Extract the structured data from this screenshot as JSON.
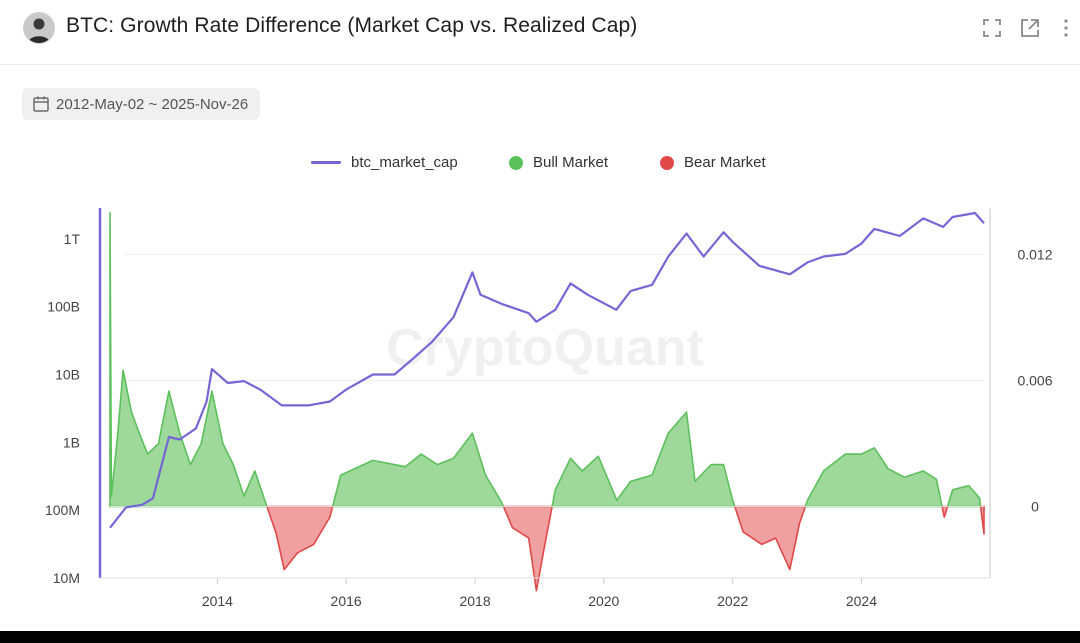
{
  "header": {
    "title": "BTC: Growth Rate Difference (Market Cap vs. Realized Cap)",
    "icons": [
      "avatar",
      "fullscreen-icon",
      "external-link-icon",
      "more-vertical-icon"
    ]
  },
  "date_range": {
    "label": "2012-May-02 ~ 2025-Nov-26",
    "icon": "calendar-icon"
  },
  "watermark": "CryptoQuant",
  "colors": {
    "market_cap_line": "#7566d6",
    "bull": "#5cc05c",
    "bull_fill": "#9ed89a",
    "bear": "#e04848",
    "bear_fill": "#f0a0a0",
    "grid": "#eeeeee"
  },
  "chart_data": {
    "type": "line",
    "legend": {
      "position": "top-center",
      "entries": [
        "btc_market_cap",
        "Bull Market",
        "Bear Market"
      ]
    },
    "x_axis": {
      "type": "date",
      "range": [
        "2012-05-02",
        "2025-11-26"
      ],
      "ticks": [
        "2014",
        "2016",
        "2018",
        "2020",
        "2022",
        "2024"
      ]
    },
    "y_left": {
      "scale": "log",
      "range": [
        10000000,
        4000000000000
      ],
      "ticks": [
        {
          "value": 1000000000000,
          "label": "1T"
        },
        {
          "value": 100000000000,
          "label": "100B"
        },
        {
          "value": 10000000000,
          "label": "10B"
        },
        {
          "value": 1000000000,
          "label": "1B"
        },
        {
          "value": 100000000,
          "label": "100M"
        },
        {
          "value": 10000000,
          "label": "10M"
        }
      ]
    },
    "y_right": {
      "scale": "linear",
      "range": [
        -0.0034,
        0.0147
      ],
      "ticks": [
        {
          "value": 0.012,
          "label": "0.012"
        },
        {
          "value": 0.006,
          "label": "0.006"
        },
        {
          "value": 0,
          "label": "0"
        }
      ]
    },
    "grid": true,
    "series": [
      {
        "name": "btc_market_cap",
        "axis": "left",
        "type": "line",
        "points": [
          [
            "2012-05-02",
            55000000
          ],
          [
            "2012-08-01",
            110000000
          ],
          [
            "2012-11-01",
            120000000
          ],
          [
            "2013-01-01",
            150000000
          ],
          [
            "2013-04-01",
            1200000000
          ],
          [
            "2013-06-01",
            1100000000
          ],
          [
            "2013-09-01",
            1600000000
          ],
          [
            "2013-11-01",
            4000000000
          ],
          [
            "2013-12-01",
            12000000000
          ],
          [
            "2014-03-01",
            7500000000
          ],
          [
            "2014-06-01",
            8000000000
          ],
          [
            "2014-09-01",
            6000000000
          ],
          [
            "2015-01-01",
            3500000000
          ],
          [
            "2015-06-01",
            3500000000
          ],
          [
            "2015-10-01",
            4000000000
          ],
          [
            "2016-01-01",
            6000000000
          ],
          [
            "2016-06-01",
            10000000000
          ],
          [
            "2016-10-01",
            10000000000
          ],
          [
            "2017-01-01",
            16000000000
          ],
          [
            "2017-05-01",
            30000000000
          ],
          [
            "2017-09-01",
            70000000000
          ],
          [
            "2017-12-17",
            320000000000
          ],
          [
            "2018-02-01",
            150000000000
          ],
          [
            "2018-06-01",
            110000000000
          ],
          [
            "2018-11-01",
            80000000000
          ],
          [
            "2018-12-15",
            60000000000
          ],
          [
            "2019-04-01",
            90000000000
          ],
          [
            "2019-06-26",
            220000000000
          ],
          [
            "2019-10-01",
            150000000000
          ],
          [
            "2020-03-12",
            90000000000
          ],
          [
            "2020-06-01",
            170000000000
          ],
          [
            "2020-10-01",
            210000000000
          ],
          [
            "2021-01-01",
            550000000000
          ],
          [
            "2021-04-14",
            1200000000000
          ],
          [
            "2021-07-20",
            550000000000
          ],
          [
            "2021-11-10",
            1250000000000
          ],
          [
            "2022-01-01",
            900000000000
          ],
          [
            "2022-06-01",
            400000000000
          ],
          [
            "2022-11-21",
            300000000000
          ],
          [
            "2023-03-01",
            450000000000
          ],
          [
            "2023-06-01",
            550000000000
          ],
          [
            "2023-10-01",
            600000000000
          ],
          [
            "2024-01-01",
            850000000000
          ],
          [
            "2024-03-14",
            1400000000000
          ],
          [
            "2024-08-05",
            1100000000000
          ],
          [
            "2024-12-17",
            2000000000000
          ],
          [
            "2025-04-08",
            1500000000000
          ],
          [
            "2025-06-01",
            2100000000000
          ],
          [
            "2025-10-06",
            2400000000000
          ],
          [
            "2025-11-26",
            1700000000000
          ]
        ]
      },
      {
        "name": "Growth Rate Difference",
        "axis": "right",
        "type": "area",
        "positive_label": "Bull Market",
        "negative_label": "Bear Market",
        "points": [
          [
            "2012-05-02",
            0.014
          ],
          [
            "2012-05-10",
            0.0005
          ],
          [
            "2012-06-15",
            0.0035
          ],
          [
            "2012-07-15",
            0.0065
          ],
          [
            "2012-09-01",
            0.0045
          ],
          [
            "2012-10-15",
            0.0035
          ],
          [
            "2012-12-01",
            0.0025
          ],
          [
            "2013-02-01",
            0.003
          ],
          [
            "2013-04-01",
            0.0055
          ],
          [
            "2013-06-01",
            0.0035
          ],
          [
            "2013-08-01",
            0.002
          ],
          [
            "2013-10-01",
            0.003
          ],
          [
            "2013-12-01",
            0.0055
          ],
          [
            "2014-02-01",
            0.003
          ],
          [
            "2014-04-01",
            0.002
          ],
          [
            "2014-06-01",
            0.0005
          ],
          [
            "2014-08-01",
            0.0017
          ],
          [
            "2014-10-01",
            0.0002
          ],
          [
            "2014-12-01",
            -0.0013
          ],
          [
            "2015-01-15",
            -0.003
          ],
          [
            "2015-04-01",
            -0.0022
          ],
          [
            "2015-07-01",
            -0.0018
          ],
          [
            "2015-10-01",
            -0.0005
          ],
          [
            "2015-12-01",
            0.0015
          ],
          [
            "2016-06-01",
            0.0022
          ],
          [
            "2016-12-01",
            0.0019
          ],
          [
            "2017-03-01",
            0.0025
          ],
          [
            "2017-06-01",
            0.002
          ],
          [
            "2017-09-01",
            0.0023
          ],
          [
            "2017-12-17",
            0.0035
          ],
          [
            "2018-03-01",
            0.0015
          ],
          [
            "2018-06-01",
            0.0002
          ],
          [
            "2018-08-01",
            -0.001
          ],
          [
            "2018-11-01",
            -0.0015
          ],
          [
            "2018-12-15",
            -0.004
          ],
          [
            "2019-02-01",
            -0.0018
          ],
          [
            "2019-04-01",
            0.0008
          ],
          [
            "2019-06-26",
            0.0023
          ],
          [
            "2019-09-01",
            0.0017
          ],
          [
            "2019-12-01",
            0.0024
          ],
          [
            "2020-03-15",
            0.0003
          ],
          [
            "2020-06-01",
            0.0012
          ],
          [
            "2020-10-01",
            0.0015
          ],
          [
            "2021-01-01",
            0.0035
          ],
          [
            "2021-04-14",
            0.0045
          ],
          [
            "2021-06-01",
            0.0012
          ],
          [
            "2021-09-01",
            0.002
          ],
          [
            "2021-11-10",
            0.002
          ],
          [
            "2022-01-01",
            0.0003
          ],
          [
            "2022-03-01",
            -0.0012
          ],
          [
            "2022-06-15",
            -0.0018
          ],
          [
            "2022-09-01",
            -0.0015
          ],
          [
            "2022-11-21",
            -0.003
          ],
          [
            "2023-01-15",
            -0.0008
          ],
          [
            "2023-03-01",
            0.0003
          ],
          [
            "2023-06-01",
            0.0017
          ],
          [
            "2023-10-01",
            0.0025
          ],
          [
            "2024-01-01",
            0.0025
          ],
          [
            "2024-03-14",
            0.0028
          ],
          [
            "2024-06-01",
            0.0018
          ],
          [
            "2024-09-01",
            0.0014
          ],
          [
            "2024-12-17",
            0.0017
          ],
          [
            "2025-03-01",
            0.0013
          ],
          [
            "2025-04-15",
            -0.0005
          ],
          [
            "2025-06-01",
            0.0008
          ],
          [
            "2025-09-01",
            0.001
          ],
          [
            "2025-11-01",
            0.0004
          ],
          [
            "2025-11-26",
            -0.0013
          ]
        ]
      }
    ]
  }
}
